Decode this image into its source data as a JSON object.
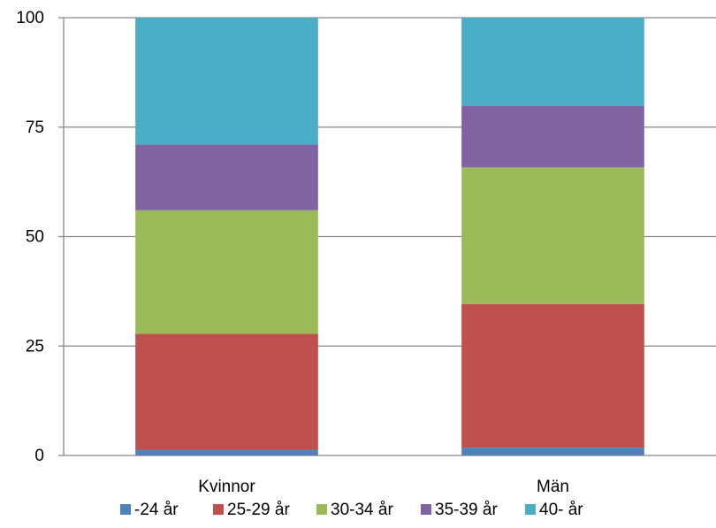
{
  "chart_data": {
    "type": "bar",
    "stacked": true,
    "title": "",
    "xlabel": "",
    "ylabel": "",
    "categories": [
      "Kvinnor",
      "Män"
    ],
    "ylim": [
      0,
      100
    ],
    "yticks": [
      0,
      25,
      50,
      75,
      100
    ],
    "grid": true,
    "legend_position": "bottom",
    "series": [
      {
        "name": "-24 år",
        "color": "#4F81BD",
        "values": [
          1.3,
          1.8
        ]
      },
      {
        "name": "25-29 år",
        "color": "#C0504D",
        "values": [
          26.5,
          32.8
        ]
      },
      {
        "name": "30-34 år",
        "color": "#9BBB59",
        "values": [
          28.2,
          31.2
        ]
      },
      {
        "name": "35-39 år",
        "color": "#8064A2",
        "values": [
          15.0,
          14.0
        ]
      },
      {
        "name": "40- år",
        "color": "#4BACC6",
        "values": [
          29.0,
          20.2
        ]
      }
    ]
  }
}
